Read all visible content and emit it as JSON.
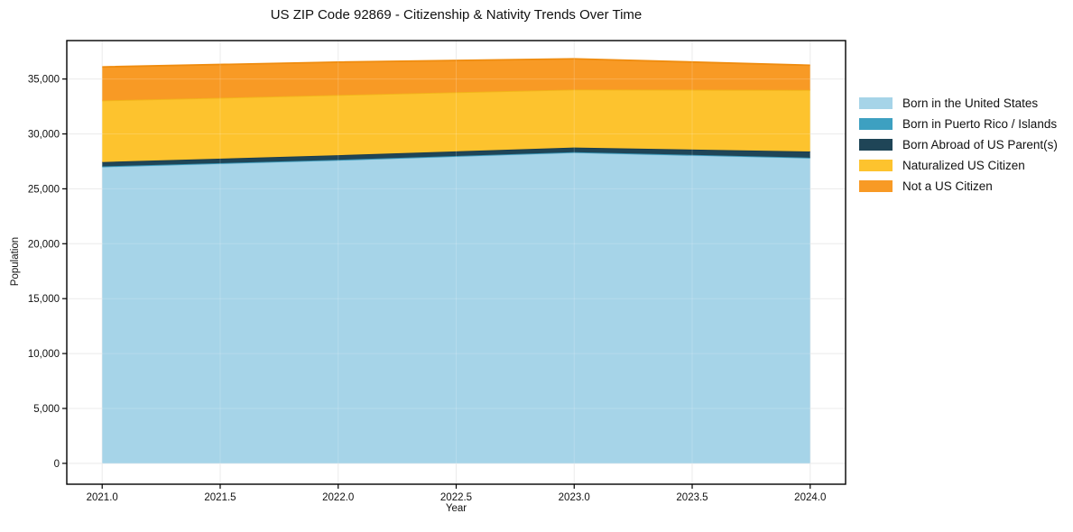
{
  "title": "US ZIP Code 92869 - Citizenship & Nativity Trends Over Time",
  "chart_data": {
    "type": "area",
    "stacked": true,
    "title": "US ZIP Code 92869 - Citizenship & Nativity Trends Over Time",
    "xlabel": "Year",
    "ylabel": "Population",
    "x": [
      2021,
      2022,
      2023,
      2024
    ],
    "series": [
      {
        "name": "Born in the United States",
        "color": "#a6d4e8",
        "edge_color": "#97c9e0",
        "values": [
          27000,
          27600,
          28300,
          27800
        ]
      },
      {
        "name": "Born in Puerto Rico / Islands",
        "color": "#3da0c1",
        "edge_color": "#3795b5",
        "values": [
          40,
          40,
          40,
          40
        ]
      },
      {
        "name": "Born Abroad of US Parent(s)",
        "color": "#1f4557",
        "edge_color": "#1b3d4d",
        "values": [
          400,
          420,
          420,
          560
        ]
      },
      {
        "name": "Naturalized US Citizen",
        "color": "#fdc32e",
        "edge_color": "#f2b51a",
        "values": [
          5600,
          5480,
          5280,
          5600
        ]
      },
      {
        "name": "Not a US Citizen",
        "color": "#f89a25",
        "edge_color": "#ef8c0f",
        "values": [
          3060,
          3000,
          2800,
          2250
        ]
      }
    ],
    "x_ticks": {
      "values": [
        2021.0,
        2021.5,
        2022.0,
        2022.5,
        2023.0,
        2023.5,
        2024.0
      ],
      "labels": [
        "2021.0",
        "2021.5",
        "2022.0",
        "2022.5",
        "2023.0",
        "2023.5",
        "2024.0"
      ]
    },
    "y_ticks": {
      "values": [
        0,
        5000,
        10000,
        15000,
        20000,
        25000,
        30000,
        35000
      ],
      "labels": [
        "0",
        "5,000",
        "10,000",
        "15,000",
        "20,000",
        "25,000",
        "30,000",
        "35,000"
      ]
    },
    "xlim": [
      2020.85,
      2024.15
    ],
    "ylim": [
      -1900,
      38500
    ],
    "grid": true,
    "grid_color": "#e7e7e7",
    "spine_color": "#000000",
    "tick_text_color": "#111111",
    "legend_position": "outside-right"
  }
}
